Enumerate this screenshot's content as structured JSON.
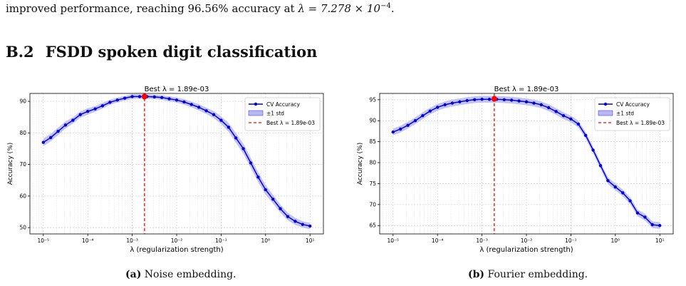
{
  "intro": {
    "lead": "improved performance, reaching ",
    "accuracy": "96.56%",
    "mid": " accuracy at ",
    "lambda_expr": "λ = 7.278 × 10",
    "exponent": "−4",
    "end": "."
  },
  "section": {
    "number": "B.2",
    "title": "FSDD spoken digit classification"
  },
  "colors": {
    "line": "#0000dd",
    "band": "#b9b9f2",
    "best": "#ff0000",
    "grid": "#dddddd"
  },
  "figures": [
    {
      "caption_label": "(a)",
      "caption_text": " Noise embedding.",
      "legend": [
        "CV Accuracy",
        "±1 std",
        "Best λ = 1.89e-03"
      ],
      "chart_data": {
        "type": "line",
        "title": "Best λ = 1.89e-03",
        "xlabel": "λ  (regularization strength)",
        "ylabel": "Accuracy (%)",
        "xscale": "log",
        "xlim": [
          5e-06,
          20.0
        ],
        "ylim": [
          48,
          92.5
        ],
        "xticks": [
          1e-05,
          0.0001,
          0.001,
          0.01,
          0.1,
          1,
          10
        ],
        "xtick_labels": [
          "10⁻⁵",
          "10⁻⁴",
          "10⁻³",
          "10⁻²",
          "10⁻¹",
          "10⁰",
          "10¹"
        ],
        "yticks": [
          50,
          60,
          70,
          80,
          90
        ],
        "grid": true,
        "legend_position": "top-right",
        "best_x": 0.00189,
        "best_y": 91.5,
        "series": [
          {
            "name": "CV Accuracy",
            "x": [
              1e-05,
              1.47e-05,
              2.15e-05,
              3.16e-05,
              4.64e-05,
              6.81e-05,
              0.0001,
              0.000147,
              0.000215,
              0.000316,
              0.000464,
              0.000681,
              0.001,
              0.00147,
              0.00215,
              0.00316,
              0.00464,
              0.00681,
              0.01,
              0.0147,
              0.0215,
              0.0316,
              0.0464,
              0.0681,
              0.1,
              0.147,
              0.215,
              0.316,
              0.464,
              0.681,
              1,
              1.47,
              2.15,
              3.16,
              4.64,
              6.81,
              10
            ],
            "values": [
              77,
              78.5,
              80.5,
              82.5,
              84,
              85.8,
              86.8,
              87.6,
              88.6,
              89.7,
              90.4,
              91,
              91.5,
              91.5,
              91.5,
              91.4,
              91.2,
              90.8,
              90.4,
              89.8,
              89,
              88.1,
              87,
              85.8,
              84,
              81.8,
              78.4,
              75,
              70.5,
              66,
              62,
              59,
              56,
              53.5,
              52,
              51,
              50.5
            ],
            "std": [
              1.2,
              1.2,
              1.2,
              1.1,
              1.0,
              1.0,
              1.0,
              0.9,
              0.9,
              0.8,
              0.8,
              0.7,
              0.7,
              0.7,
              0.7,
              0.7,
              0.7,
              0.8,
              0.8,
              0.9,
              0.9,
              1.0,
              1.0,
              1.1,
              1.2,
              1.4,
              1.5,
              1.6,
              1.6,
              1.6,
              1.5,
              1.4,
              1.3,
              1.2,
              1.1,
              1.0,
              1.0
            ]
          }
        ]
      }
    },
    {
      "caption_label": "(b)",
      "caption_text": " Fourier embedding.",
      "legend": [
        "CV Accuracy",
        "±1 std",
        "Best λ = 1.89e-03"
      ],
      "chart_data": {
        "type": "line",
        "title": "Best λ = 1.89e-03",
        "xlabel": "λ  (regularization strength)",
        "ylabel": "Accuracy (%)",
        "xscale": "log",
        "xlim": [
          5e-06,
          20.0
        ],
        "ylim": [
          63,
          96.5
        ],
        "xticks": [
          1e-05,
          0.0001,
          0.001,
          0.01,
          0.1,
          1,
          10
        ],
        "xtick_labels": [
          "10⁻⁵",
          "10⁻⁴",
          "10⁻³",
          "10⁻²",
          "10⁻¹",
          "10⁰",
          "10¹"
        ],
        "yticks": [
          65,
          70,
          75,
          80,
          85,
          90,
          95
        ],
        "grid": true,
        "legend_position": "top-right",
        "best_x": 0.00189,
        "best_y": 95.2,
        "series": [
          {
            "name": "CV Accuracy",
            "x": [
              1e-05,
              1.47e-05,
              2.15e-05,
              3.16e-05,
              4.64e-05,
              6.81e-05,
              0.0001,
              0.000147,
              0.000215,
              0.000316,
              0.000464,
              0.000681,
              0.001,
              0.00147,
              0.00215,
              0.00316,
              0.00464,
              0.00681,
              0.01,
              0.0147,
              0.0215,
              0.0316,
              0.0464,
              0.0681,
              0.1,
              0.147,
              0.215,
              0.316,
              0.464,
              0.681,
              1,
              1.47,
              2.15,
              3.16,
              4.64,
              6.81,
              10
            ],
            "values": [
              87.3,
              88,
              88.9,
              90,
              91.2,
              92.3,
              93.2,
              93.8,
              94.2,
              94.5,
              94.8,
              95,
              95.1,
              95.1,
              95.1,
              95,
              94.9,
              94.7,
              94.5,
              94.2,
              93.8,
              93.1,
              92.2,
              91.2,
              90.4,
              89.2,
              86.5,
              83,
              79.3,
              75.7,
              74.2,
              72.8,
              70.9,
              68,
              67,
              65.2,
              65
            ]
          }
        ]
      }
    }
  ]
}
